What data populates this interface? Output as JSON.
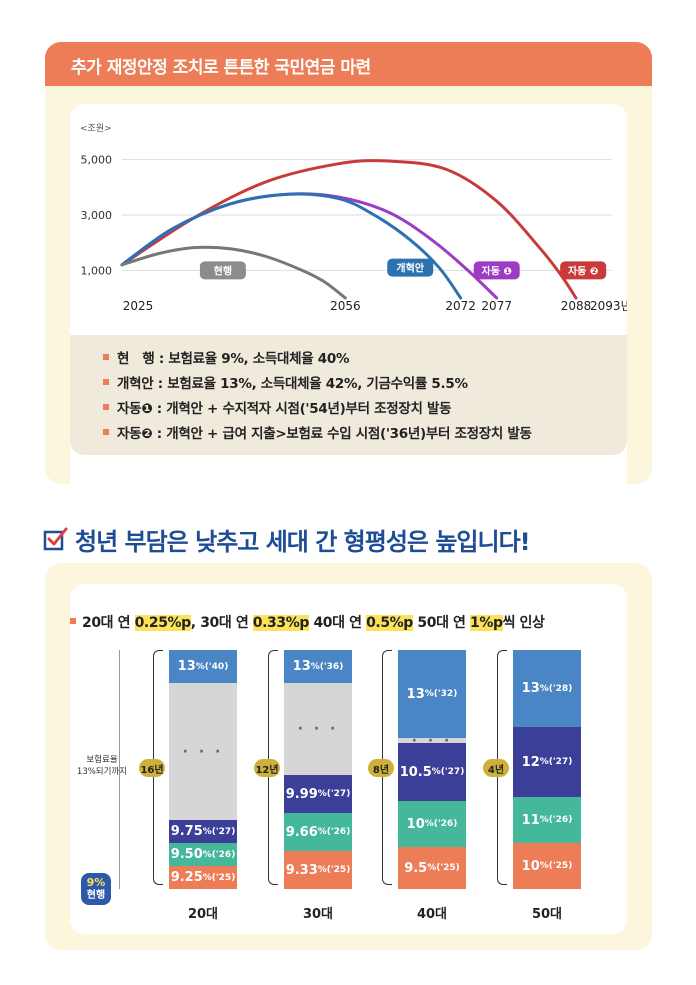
{
  "top_section": {
    "header_title": "추가 재정안정 조치로 튼튼한 국민연금 마련",
    "legend": [
      {
        "term": "현　행",
        "desc": " : 보험료율 9%, 소득대체율 40%"
      },
      {
        "term": "개혁안",
        "desc": " : 보험료율 13%, 소득대체율 42%, 기금수익률 5.5%"
      },
      {
        "term": "자동❶",
        "desc": " : 개혁안 + 수지적자 시점('54년)부터 조정장치 발동"
      },
      {
        "term": "자동❷",
        "desc": " : 개혁안 + 급여 지출>보험료 수입 시점('36년)부터 조정장치 발동"
      }
    ]
  },
  "headline": "청년 부담은 낮추고 세대 간 형평성은 높입니다!",
  "bottom_section": {
    "title_parts": [
      {
        "t": "20대 연 ",
        "hl": false
      },
      {
        "t": "0.25%p",
        "hl": true
      },
      {
        "t": ", 30대 연 ",
        "hl": false
      },
      {
        "t": "0.33%p",
        "hl": true
      },
      {
        "t": " 40대 연 ",
        "hl": false
      },
      {
        "t": "0.5%p",
        "hl": true
      },
      {
        "t": " 50대 연 ",
        "hl": false
      },
      {
        "t": "1%p",
        "hl": true
      },
      {
        "t": "씩 인상",
        "hl": false
      }
    ],
    "side_note_line1": "보험료율",
    "side_note_line2": "13%되기까지",
    "current_badge": {
      "pct": "9%",
      "label": "현행"
    }
  },
  "chart_data": [
    {
      "type": "line",
      "unit_label": "<조원>",
      "ylim": [
        0,
        6000
      ],
      "yticks": [
        {
          "v": 1000,
          "label": "1,000"
        },
        {
          "v": 3000,
          "label": "3,000"
        },
        {
          "v": 5000,
          "label": "5,000"
        }
      ],
      "xlim": [
        2025,
        2093
      ],
      "xticks": [
        {
          "v": 2025,
          "label": "2025"
        },
        {
          "v": 2056,
          "label": "2056"
        },
        {
          "v": 2072,
          "label": "2072"
        },
        {
          "v": 2077,
          "label": "2077"
        },
        {
          "v": 2088,
          "label": "2088"
        },
        {
          "v": 2093,
          "label": "2093년"
        }
      ],
      "series": [
        {
          "name": "현행",
          "color": "#777777",
          "label_bg": "#8c8c8c",
          "points": [
            [
              2025,
              1200
            ],
            [
              2030,
              1600
            ],
            [
              2035,
              1820
            ],
            [
              2040,
              1780
            ],
            [
              2045,
              1500
            ],
            [
              2050,
              1000
            ],
            [
              2053,
              600
            ],
            [
              2056,
              0
            ]
          ],
          "label_at": [
            2039,
            1000
          ]
        },
        {
          "name": "개혁안",
          "color": "#2d72b0",
          "label_bg": "#2d72b0",
          "points": [
            [
              2025,
              1200
            ],
            [
              2032,
              2500
            ],
            [
              2040,
              3400
            ],
            [
              2048,
              3750
            ],
            [
              2055,
              3600
            ],
            [
              2060,
              3000
            ],
            [
              2065,
              2100
            ],
            [
              2069,
              1100
            ],
            [
              2072,
              0
            ]
          ],
          "label_at": [
            2065,
            1100
          ]
        },
        {
          "name": "자동 ❶",
          "color": "#9d3bc4",
          "label_bg": "#9d3bc4",
          "points": [
            [
              2025,
              1200
            ],
            [
              2032,
              2500
            ],
            [
              2040,
              3400
            ],
            [
              2048,
              3750
            ],
            [
              2055,
              3650
            ],
            [
              2062,
              3100
            ],
            [
              2068,
              2100
            ],
            [
              2073,
              1000
            ],
            [
              2077,
              0
            ]
          ],
          "label_at": [
            2077,
            1000
          ]
        },
        {
          "name": "자동 ❷",
          "color": "#c93b3b",
          "label_bg": "#c93b3b",
          "points": [
            [
              2025,
              1200
            ],
            [
              2035,
              2900
            ],
            [
              2045,
              4200
            ],
            [
              2055,
              4850
            ],
            [
              2062,
              4950
            ],
            [
              2070,
              4650
            ],
            [
              2077,
              3500
            ],
            [
              2083,
              1800
            ],
            [
              2086,
              800
            ],
            [
              2088,
              0
            ]
          ],
          "label_at": [
            2089,
            1000
          ]
        }
      ]
    },
    {
      "type": "bar",
      "categories": [
        "20대",
        "30대",
        "40대",
        "50대"
      ],
      "periods": [
        "16년",
        "12년",
        "8년",
        "4년"
      ],
      "bars": [
        {
          "category": "20대",
          "segments": [
            {
              "v": "9.25",
              "y": "('25)",
              "color": "#ec7d57"
            },
            {
              "v": "9.50",
              "y": "('26)",
              "color": "#45b79a"
            },
            {
              "v": "9.75",
              "y": "('27)",
              "color": "#3b3f98"
            },
            {
              "v": "· · ·",
              "y": "",
              "color": "#d6d6d6",
              "gap": true
            },
            {
              "v": "13",
              "y": "('40)",
              "color": "#4a86c5"
            }
          ]
        },
        {
          "category": "30대",
          "segments": [
            {
              "v": "9.33",
              "y": "('25)",
              "color": "#ec7d57"
            },
            {
              "v": "9.66",
              "y": "('26)",
              "color": "#45b79a"
            },
            {
              "v": "9.99",
              "y": "('27)",
              "color": "#3b3f98"
            },
            {
              "v": "· · ·",
              "y": "",
              "color": "#d6d6d6",
              "gap": true
            },
            {
              "v": "13",
              "y": "('36)",
              "color": "#4a86c5"
            }
          ]
        },
        {
          "category": "40대",
          "segments": [
            {
              "v": "9.5",
              "y": "('25)",
              "color": "#ec7d57"
            },
            {
              "v": "10",
              "y": "('26)",
              "color": "#45b79a"
            },
            {
              "v": "10.5",
              "y": "('27)",
              "color": "#3b3f98"
            },
            {
              "v": "· · ·",
              "y": "",
              "color": "#d6d6d6",
              "gap": true
            },
            {
              "v": "13",
              "y": "('32)",
              "color": "#4a86c5"
            }
          ]
        },
        {
          "category": "50대",
          "segments": [
            {
              "v": "10",
              "y": "('25)",
              "color": "#ec7d57"
            },
            {
              "v": "11",
              "y": "('26)",
              "color": "#45b79a"
            },
            {
              "v": "12",
              "y": "('27)",
              "color": "#3b3f98"
            },
            {
              "v": "13",
              "y": "('28)",
              "color": "#4a86c5"
            }
          ]
        }
      ]
    }
  ]
}
